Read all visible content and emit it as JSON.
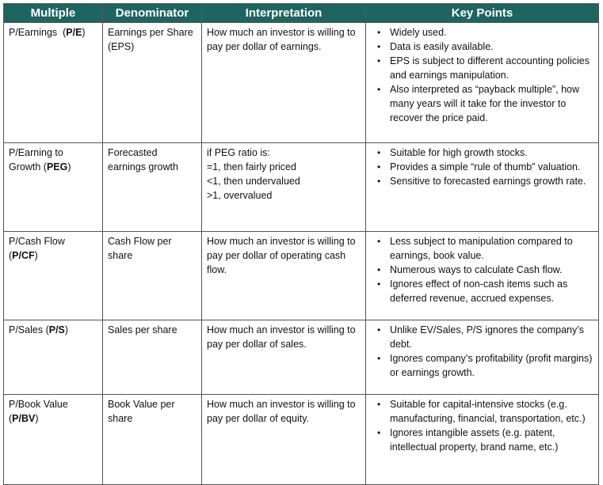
{
  "headers": [
    "Multiple",
    "Denominator",
    "Interpretation",
    "Key Points"
  ],
  "rows": [
    {
      "multiple_name": "P/Earnings",
      "multiple_abbr": "P/E",
      "denominator": "Earnings per Share (EPS)",
      "interpretation": [
        "How much an investor is willing to pay per dollar of earnings."
      ],
      "key_points": [
        "Widely used.",
        "Data is easily available.",
        "EPS is subject to different accounting policies and earnings manipulation.",
        "Also interpreted as “payback multiple”, how many years will it take for the investor to recover the price paid."
      ]
    },
    {
      "multiple_name": "P/Earning to Growth",
      "multiple_abbr": "PEG",
      "denominator": "Forecasted earnings growth",
      "interpretation": [
        "if PEG ratio is:",
        "=1, then fairly priced",
        "<1, then undervalued",
        ">1, overvalued"
      ],
      "key_points": [
        "Suitable for high growth stocks.",
        "Provides a simple “rule of thumb” valuation.",
        "Sensitive to forecasted earnings growth rate."
      ]
    },
    {
      "multiple_name": "P/Cash Flow",
      "multiple_abbr": "P/CF",
      "denominator": "Cash Flow per share",
      "interpretation": [
        "How much an investor is willing to pay per dollar of operating cash flow."
      ],
      "key_points": [
        "Less subject to manipulation compared to earnings, book value.",
        "Numerous ways to calculate Cash flow.",
        "Ignores effect of non-cash items such as deferred revenue, accrued expenses."
      ]
    },
    {
      "multiple_name": "P/Sales",
      "multiple_abbr": "P/S",
      "denominator": "Sales per share",
      "interpretation": [
        "How much an investor is willing to pay per dollar of sales."
      ],
      "key_points": [
        "Unlike EV/Sales, P/S ignores the company’s debt.",
        "Ignores company’s profitability (profit margins) or earnings growth."
      ]
    },
    {
      "multiple_name": "P/Book Value",
      "multiple_abbr": "P/BV",
      "denominator": "Book Value per share",
      "interpretation": [
        "How much an investor is willing to pay per dollar of equity."
      ],
      "key_points": [
        "Suitable for capital-intensive stocks (e.g. manufacturing, financial, transportation, etc.)",
        "Ignores intangible assets (e.g. patent, intellectual property, brand name, etc.)"
      ]
    }
  ]
}
